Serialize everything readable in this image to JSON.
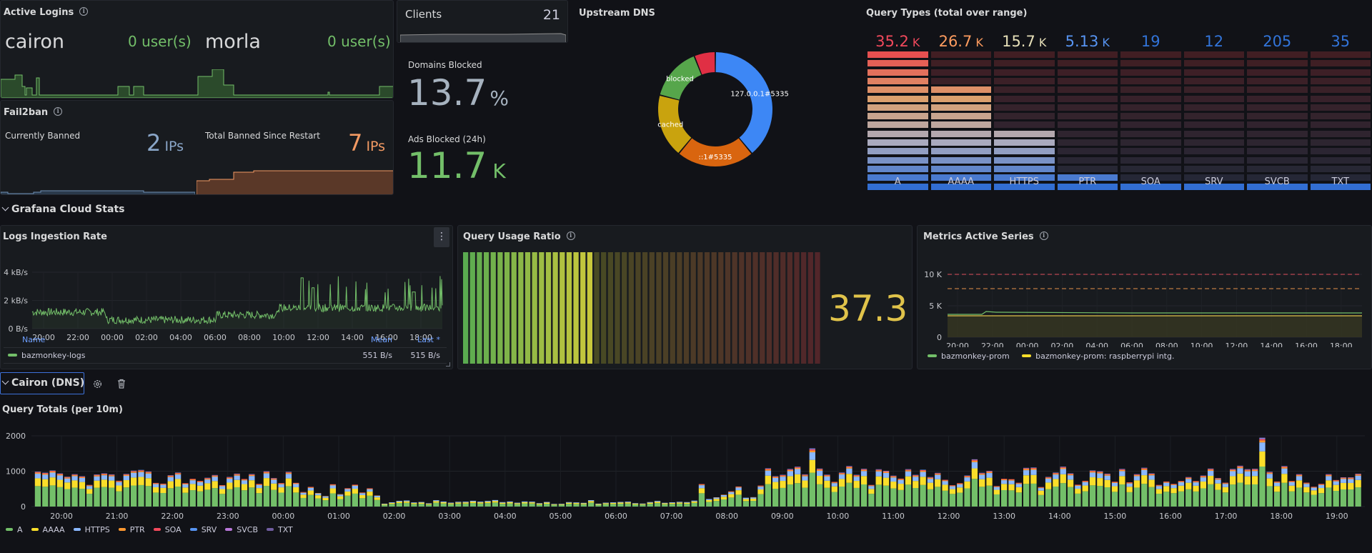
{
  "active_logins": {
    "title": "Active Logins",
    "hosts": [
      {
        "name": "cairon",
        "value": "0 user(s)"
      },
      {
        "name": "morla",
        "value": "0 user(s)"
      }
    ]
  },
  "fail2ban": {
    "title": "Fail2ban",
    "currently_banned": {
      "label": "Currently Banned",
      "value": "2",
      "unit": "IPs"
    },
    "total_banned": {
      "label": "Total Banned Since Restart",
      "value": "7",
      "unit": "IPs"
    }
  },
  "clients": {
    "title": "Clients",
    "value": "21"
  },
  "domains_blocked": {
    "title": "Domains Blocked",
    "value": "13.7",
    "unit": "%"
  },
  "ads_blocked": {
    "title": "Ads Blocked (24h)",
    "value": "11.7",
    "unit": "K"
  },
  "upstream_dns": {
    "title": "Upstream DNS",
    "chart_data": {
      "type": "pie",
      "labels": [
        "127.0.0.1#5335",
        "::1#5335",
        "cached",
        "blocked",
        ""
      ],
      "values": [
        39,
        22,
        18,
        15,
        6
      ],
      "colors": [
        "#3d87f5",
        "#d9650f",
        "#c9a30e",
        "#56a64b",
        "#e02f44"
      ]
    }
  },
  "query_types": {
    "title": "Query Types (total over range)",
    "items": [
      {
        "label": "A",
        "value": "35.2",
        "unit": "K",
        "color": "#f2495c",
        "fill": 1.0
      },
      {
        "label": "AAAA",
        "value": "26.7",
        "unit": "K",
        "color": "#ff9c5f",
        "fill": 0.76
      },
      {
        "label": "HTTPS",
        "value": "15.7",
        "unit": "K",
        "color": "#e6dfb8",
        "fill": 0.45
      },
      {
        "label": "PTR",
        "value": "5.13",
        "unit": "K",
        "color": "#5794f2",
        "fill": 0.15
      },
      {
        "label": "SOA",
        "value": "19",
        "unit": "",
        "color": "#3274d9",
        "fill": 0.03
      },
      {
        "label": "SRV",
        "value": "12",
        "unit": "",
        "color": "#3274d9",
        "fill": 0.03
      },
      {
        "label": "SVCB",
        "value": "205",
        "unit": "",
        "color": "#3274d9",
        "fill": 0.03
      },
      {
        "label": "TXT",
        "value": "35",
        "unit": "",
        "color": "#3274d9",
        "fill": 0.03
      }
    ]
  },
  "row_grafana": {
    "title": "Grafana Cloud Stats"
  },
  "logs_ingestion": {
    "title": "Logs Ingestion Rate",
    "y_ticks": [
      "4 kB/s",
      "2 kB/s",
      "0 B/s"
    ],
    "x_ticks": [
      "20:00",
      "22:00",
      "00:00",
      "02:00",
      "04:00",
      "06:00",
      "08:00",
      "10:00",
      "12:00",
      "14:00",
      "16:00",
      "18:00"
    ],
    "legend_headers": {
      "name": "Name",
      "mean": "Mean",
      "last": "Last *"
    },
    "series": [
      {
        "name": "bazmonkey-logs",
        "mean": "551 B/s",
        "last": "515 B/s",
        "color": "#73bf69"
      }
    ]
  },
  "query_usage": {
    "title": "Query Usage Ratio",
    "value": "37.3",
    "ratio": 0.373
  },
  "metrics_series": {
    "title": "Metrics Active Series",
    "y_ticks": [
      "10 K",
      "5 K",
      "0"
    ],
    "x_ticks": [
      "20:00",
      "22:00",
      "00:00",
      "02:00",
      "04:00",
      "06:00",
      "08:00",
      "10:00",
      "12:00",
      "14:00",
      "16:00",
      "18:00"
    ],
    "legend": [
      {
        "name": "bazmonkey-prom",
        "color": "#73bf69"
      },
      {
        "name": "bazmonkey-prom: raspberrypi intg.",
        "color": "#fade2a"
      }
    ]
  },
  "row_cairon": {
    "title": "Cairon (DNS)"
  },
  "query_totals": {
    "title": "Query Totals (per 10m)",
    "y_ticks": [
      "2000",
      "1000",
      "0"
    ],
    "x_ticks": [
      "20:00",
      "21:00",
      "22:00",
      "23:00",
      "00:00",
      "01:00",
      "02:00",
      "03:00",
      "04:00",
      "05:00",
      "06:00",
      "07:00",
      "08:00",
      "09:00",
      "10:00",
      "11:00",
      "12:00",
      "13:00",
      "14:00",
      "15:00",
      "16:00",
      "17:00",
      "18:00",
      "19:00"
    ],
    "legend": [
      {
        "name": "A",
        "color": "#73bf69"
      },
      {
        "name": "AAAA",
        "color": "#fade2a"
      },
      {
        "name": "HTTPS",
        "color": "#8ab8ff"
      },
      {
        "name": "PTR",
        "color": "#ff9830"
      },
      {
        "name": "SOA",
        "color": "#f2495c"
      },
      {
        "name": "SRV",
        "color": "#5794f2"
      },
      {
        "name": "SVCB",
        "color": "#b877d9"
      },
      {
        "name": "TXT",
        "color": "#705da0"
      }
    ]
  }
}
